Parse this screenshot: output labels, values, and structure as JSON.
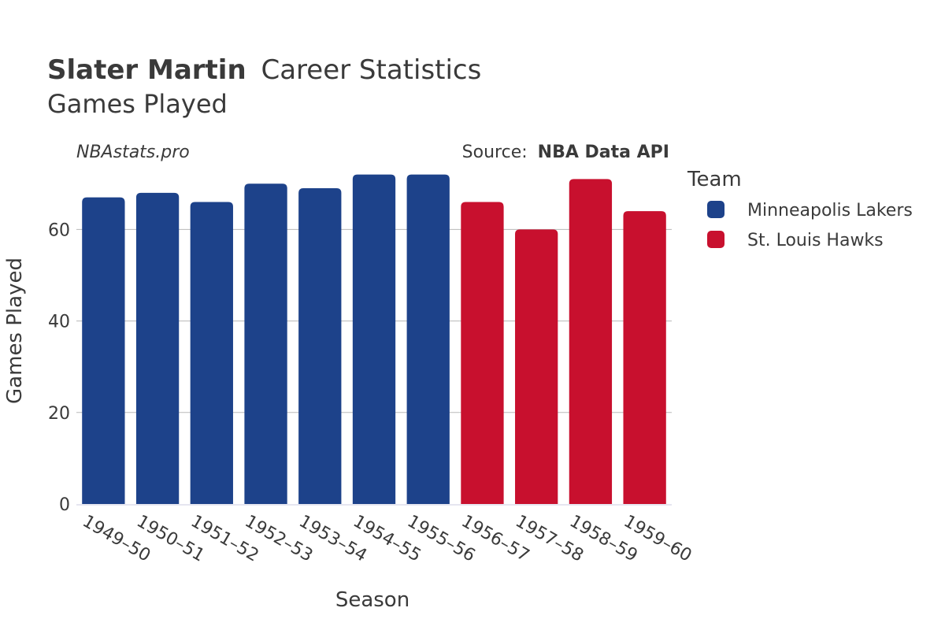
{
  "header": {
    "title_bold": "Slater Martin",
    "title_rest": "Career Statistics",
    "subtitle": "Games Played",
    "site": "NBAstats.pro",
    "source_prefix": "Source:",
    "source_name": "NBA Data API"
  },
  "legend": {
    "title": "Team",
    "placement": "right"
  },
  "chart_data": {
    "type": "bar",
    "xlabel": "Season",
    "ylabel": "Games Played",
    "ylim": [
      0,
      74
    ],
    "yticks": [
      0,
      20,
      40,
      60
    ],
    "grid": true,
    "categories": [
      "1949–50",
      "1950–51",
      "1951–52",
      "1952–53",
      "1953–54",
      "1954–55",
      "1955–56",
      "1956–57",
      "1957–58",
      "1958–59",
      "1959–60"
    ],
    "series": [
      {
        "name": "Minneapolis Lakers",
        "color": "#1d428a",
        "values": [
          67,
          68,
          66,
          70,
          69,
          72,
          72,
          null,
          null,
          null,
          null
        ]
      },
      {
        "name": "St. Louis Hawks",
        "color": "#c8102e",
        "values": [
          null,
          null,
          null,
          null,
          null,
          null,
          null,
          66,
          60,
          71,
          64
        ]
      }
    ]
  }
}
